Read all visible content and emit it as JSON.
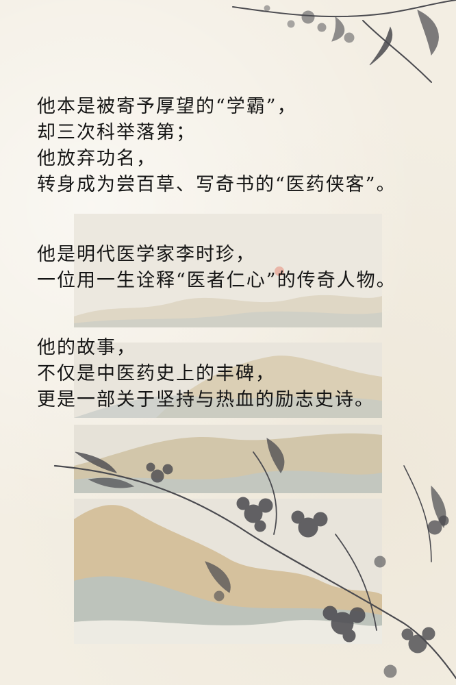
{
  "poem": {
    "stanza_1": [
      "他本是被寄予厚望的“学霸”，",
      "却三次科举落第；",
      "他放弃功名，",
      "转身成为尝百草、写奇书的“医药侠客”。"
    ],
    "stanza_2": [
      "他是明代医学家李时珍，",
      "一位用一生诠释“医者仁心”的传奇人物。"
    ],
    "stanza_3": [
      "他的故事，",
      "不仅是中医药史上的丰碑，",
      "更是一部关于坚持与热血的励志史诗。"
    ]
  },
  "colors": {
    "paper": "#f3eee3",
    "ink": "#141414",
    "mountain_ochre": "#d9c6a3",
    "mountain_grey": "#b9c4c4",
    "flower_ink": "#4a4a4f",
    "sun_dot": "#e8a99a"
  },
  "decorations": [
    "ink-flower-branch-top-right",
    "ink-flower-branch-bottom",
    "landscape-panel-1",
    "landscape-panel-2",
    "landscape-panel-3",
    "landscape-panel-4"
  ]
}
